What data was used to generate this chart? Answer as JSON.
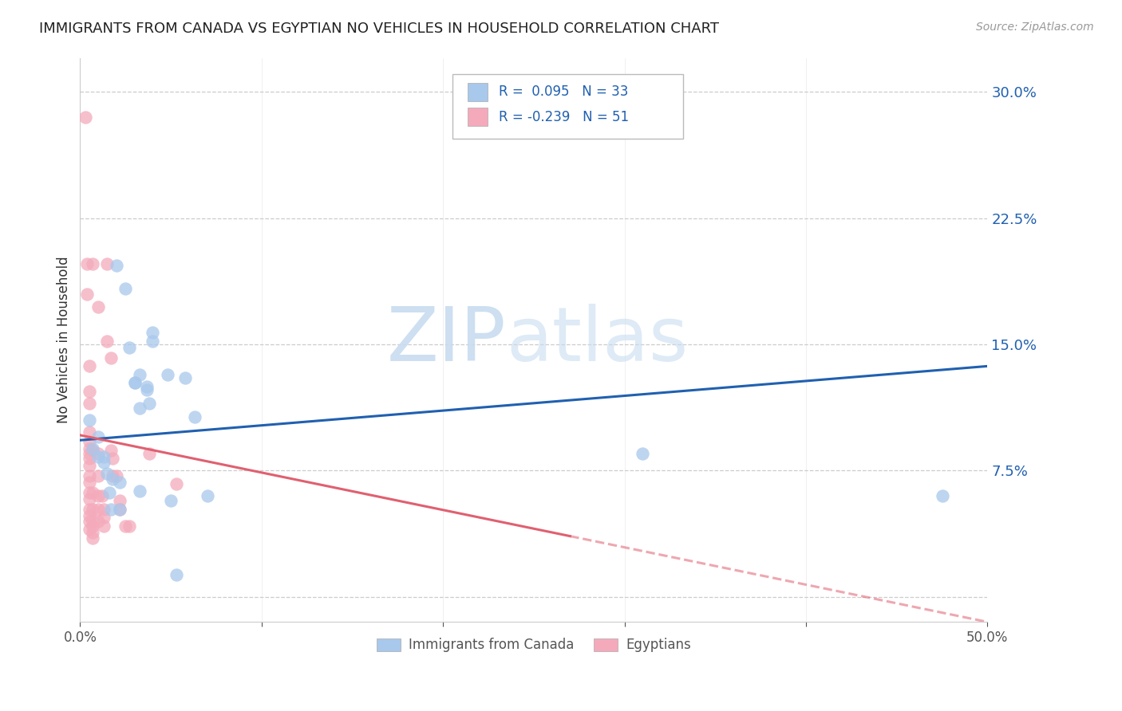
{
  "title": "IMMIGRANTS FROM CANADA VS EGYPTIAN NO VEHICLES IN HOUSEHOLD CORRELATION CHART",
  "source": "Source: ZipAtlas.com",
  "ylabel": "No Vehicles in Household",
  "yticks": [
    0.0,
    0.075,
    0.15,
    0.225,
    0.3
  ],
  "ytick_labels": [
    "",
    "7.5%",
    "15.0%",
    "22.5%",
    "30.0%"
  ],
  "xlim": [
    0.0,
    0.5
  ],
  "ylim": [
    -0.015,
    0.32
  ],
  "watermark_zip": "ZIP",
  "watermark_atlas": "atlas",
  "legend_text_blue": "R =  0.095   N = 33",
  "legend_text_pink": "R = -0.239   N = 51",
  "blue_color": "#A8C8EC",
  "pink_color": "#F4AABB",
  "blue_line_color": "#2060B0",
  "pink_line_color": "#E06070",
  "grid_color": "#CCCCCC",
  "blue_scatter": [
    [
      0.005,
      0.105
    ],
    [
      0.007,
      0.088
    ],
    [
      0.01,
      0.083
    ],
    [
      0.01,
      0.095
    ],
    [
      0.013,
      0.08
    ],
    [
      0.013,
      0.083
    ],
    [
      0.015,
      0.073
    ],
    [
      0.016,
      0.062
    ],
    [
      0.017,
      0.052
    ],
    [
      0.018,
      0.07
    ],
    [
      0.02,
      0.197
    ],
    [
      0.022,
      0.052
    ],
    [
      0.022,
      0.068
    ],
    [
      0.025,
      0.183
    ],
    [
      0.027,
      0.148
    ],
    [
      0.03,
      0.127
    ],
    [
      0.03,
      0.127
    ],
    [
      0.033,
      0.132
    ],
    [
      0.033,
      0.112
    ],
    [
      0.033,
      0.063
    ],
    [
      0.037,
      0.125
    ],
    [
      0.037,
      0.123
    ],
    [
      0.038,
      0.115
    ],
    [
      0.04,
      0.157
    ],
    [
      0.04,
      0.152
    ],
    [
      0.048,
      0.132
    ],
    [
      0.05,
      0.057
    ],
    [
      0.053,
      0.013
    ],
    [
      0.058,
      0.13
    ],
    [
      0.063,
      0.107
    ],
    [
      0.07,
      0.06
    ],
    [
      0.31,
      0.085
    ],
    [
      0.475,
      0.06
    ]
  ],
  "pink_scatter": [
    [
      0.003,
      0.285
    ],
    [
      0.004,
      0.198
    ],
    [
      0.004,
      0.18
    ],
    [
      0.005,
      0.137
    ],
    [
      0.005,
      0.122
    ],
    [
      0.005,
      0.115
    ],
    [
      0.005,
      0.098
    ],
    [
      0.005,
      0.092
    ],
    [
      0.005,
      0.088
    ],
    [
      0.005,
      0.085
    ],
    [
      0.005,
      0.082
    ],
    [
      0.005,
      0.078
    ],
    [
      0.005,
      0.072
    ],
    [
      0.005,
      0.068
    ],
    [
      0.005,
      0.062
    ],
    [
      0.005,
      0.058
    ],
    [
      0.005,
      0.052
    ],
    [
      0.005,
      0.048
    ],
    [
      0.005,
      0.045
    ],
    [
      0.005,
      0.04
    ],
    [
      0.007,
      0.198
    ],
    [
      0.007,
      0.087
    ],
    [
      0.007,
      0.062
    ],
    [
      0.007,
      0.052
    ],
    [
      0.007,
      0.045
    ],
    [
      0.007,
      0.042
    ],
    [
      0.007,
      0.038
    ],
    [
      0.007,
      0.035
    ],
    [
      0.01,
      0.172
    ],
    [
      0.01,
      0.085
    ],
    [
      0.01,
      0.072
    ],
    [
      0.01,
      0.06
    ],
    [
      0.01,
      0.052
    ],
    [
      0.01,
      0.045
    ],
    [
      0.012,
      0.06
    ],
    [
      0.013,
      0.052
    ],
    [
      0.013,
      0.047
    ],
    [
      0.013,
      0.042
    ],
    [
      0.015,
      0.198
    ],
    [
      0.015,
      0.152
    ],
    [
      0.017,
      0.142
    ],
    [
      0.017,
      0.087
    ],
    [
      0.018,
      0.082
    ],
    [
      0.018,
      0.072
    ],
    [
      0.02,
      0.072
    ],
    [
      0.022,
      0.057
    ],
    [
      0.022,
      0.052
    ],
    [
      0.025,
      0.042
    ],
    [
      0.027,
      0.042
    ],
    [
      0.038,
      0.085
    ],
    [
      0.053,
      0.067
    ]
  ],
  "blue_line": {
    "x0": 0.0,
    "x1": 0.5,
    "y0": 0.093,
    "y1": 0.137
  },
  "pink_line_solid": {
    "x0": 0.0,
    "x1": 0.27,
    "y0": 0.096,
    "y1": 0.036
  },
  "pink_line_dash": {
    "x0": 0.27,
    "x1": 0.5,
    "y0": 0.036,
    "y1": -0.015
  }
}
